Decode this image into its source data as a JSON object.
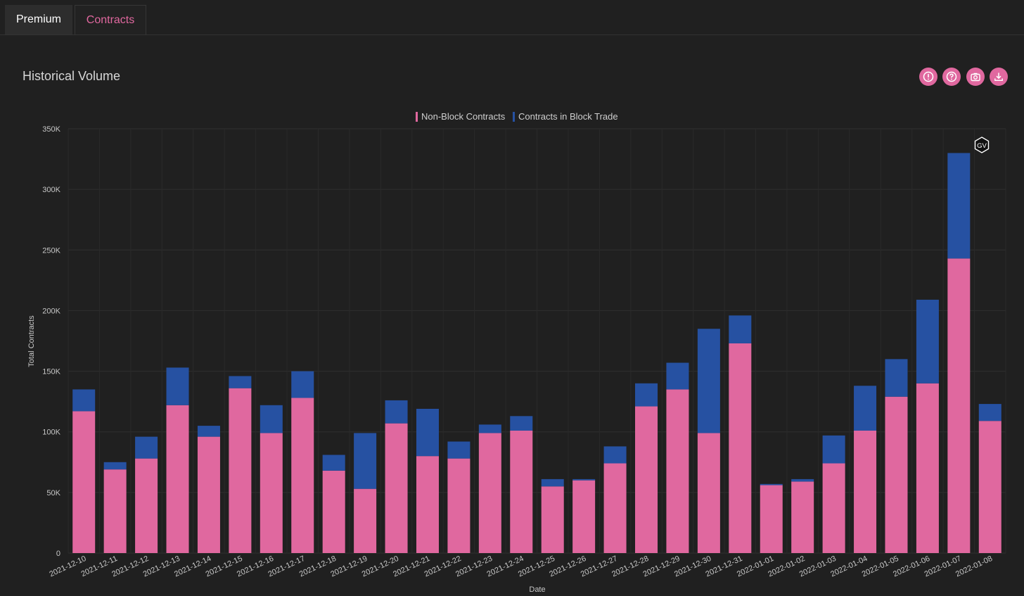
{
  "tabs": [
    {
      "label": "Premium"
    },
    {
      "label": "Contracts"
    }
  ],
  "panel": {
    "title": "Historical Volume"
  },
  "toolbar": {
    "icons": [
      "alert-icon",
      "help-icon",
      "camera-icon",
      "download-icon"
    ]
  },
  "colors": {
    "non_block": "#e0689f",
    "block": "#2651a2",
    "accent": "#e0689f",
    "background": "#202020"
  },
  "watermark": "GV",
  "chart_data": {
    "type": "bar",
    "stacked": true,
    "title": "",
    "xlabel": "Date",
    "ylabel": "Total Contracts",
    "ylim": [
      0,
      350000
    ],
    "yticks": [
      0,
      50000,
      100000,
      150000,
      200000,
      250000,
      300000,
      350000
    ],
    "ytick_labels": [
      "0",
      "50K",
      "100K",
      "150K",
      "200K",
      "250K",
      "300K",
      "350K"
    ],
    "legend_position": "top-center",
    "grid": true,
    "categories": [
      "2021-12-10",
      "2021-12-11",
      "2021-12-12",
      "2021-12-13",
      "2021-12-14",
      "2021-12-15",
      "2021-12-16",
      "2021-12-17",
      "2021-12-18",
      "2021-12-19",
      "2021-12-20",
      "2021-12-21",
      "2021-12-22",
      "2021-12-23",
      "2021-12-24",
      "2021-12-25",
      "2021-12-26",
      "2021-12-27",
      "2021-12-28",
      "2021-12-29",
      "2021-12-30",
      "2021-12-31",
      "2022-01-01",
      "2022-01-02",
      "2022-01-03",
      "2022-01-04",
      "2022-01-05",
      "2022-01-06",
      "2022-01-07",
      "2022-01-08"
    ],
    "series": [
      {
        "name": "Non-Block Contracts",
        "color": "#e0689f",
        "values": [
          117000,
          69000,
          78000,
          122000,
          96000,
          136000,
          99000,
          128000,
          68000,
          53000,
          107000,
          80000,
          78000,
          99000,
          101000,
          55000,
          60000,
          74000,
          121000,
          135000,
          99000,
          173000,
          56000,
          59000,
          74000,
          101000,
          129000,
          140000,
          243000,
          109000
        ]
      },
      {
        "name": "Contracts in Block Trade",
        "color": "#2651a2",
        "values": [
          18000,
          6000,
          18000,
          31000,
          9000,
          10000,
          23000,
          22000,
          13000,
          46000,
          19000,
          39000,
          14000,
          7000,
          12000,
          6000,
          1000,
          14000,
          19000,
          22000,
          86000,
          23000,
          1000,
          2000,
          23000,
          37000,
          31000,
          69000,
          87000,
          14000
        ]
      }
    ]
  }
}
